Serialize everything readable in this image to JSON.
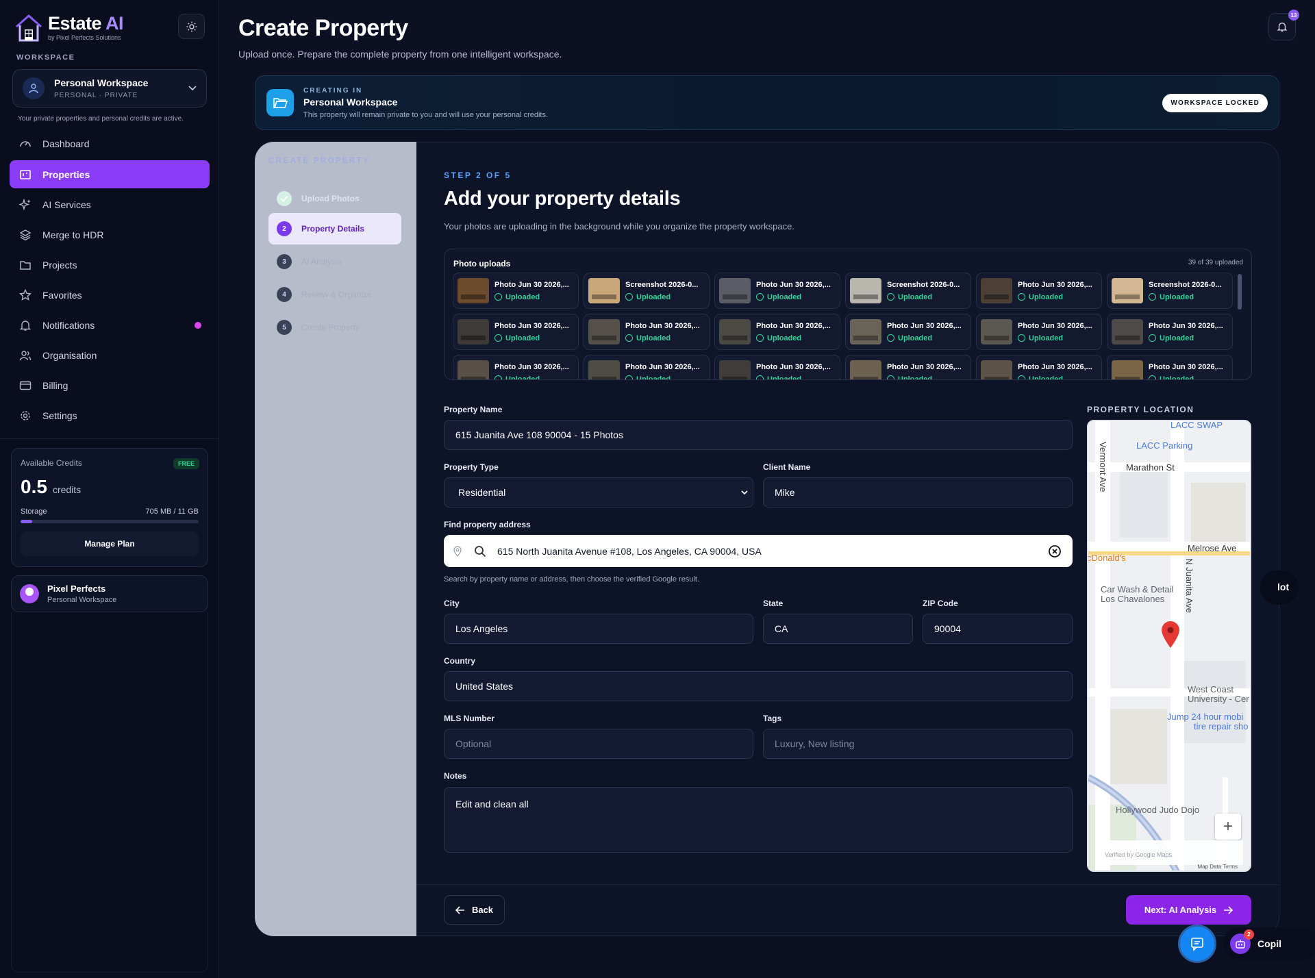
{
  "app": {
    "brand_main": "Estate",
    "brand_accent": "AI",
    "brand_sub": "by Pixel Perfects Solutions"
  },
  "sidebar": {
    "workspace_label": "WORKSPACE",
    "workspace": {
      "name": "Personal Workspace",
      "meta": "PERSONAL · PRIVATE",
      "note": "Your private properties and personal credits are active."
    },
    "items": [
      {
        "label": "Dashboard",
        "icon": "gauge-icon"
      },
      {
        "label": "Properties",
        "icon": "building-icon"
      },
      {
        "label": "AI Services",
        "icon": "sparkles-icon"
      },
      {
        "label": "Merge to HDR",
        "icon": "layers-icon"
      },
      {
        "label": "Projects",
        "icon": "folder-icon"
      },
      {
        "label": "Favorites",
        "icon": "star-icon"
      },
      {
        "label": "Notifications",
        "icon": "bell-icon"
      },
      {
        "label": "Organisation",
        "icon": "users-icon"
      },
      {
        "label": "Billing",
        "icon": "card-icon"
      },
      {
        "label": "Settings",
        "icon": "gear-icon"
      }
    ],
    "credits": {
      "label": "Available Credits",
      "plan_badge": "FREE",
      "value": "0.5",
      "unit": "credits",
      "storage_label": "Storage",
      "storage_value": "705 MB / 11 GB",
      "storage_fraction": 0.064,
      "manage_label": "Manage Plan"
    },
    "user": {
      "name": "Pixel Perfects",
      "workspace": "Personal Workspace"
    }
  },
  "header": {
    "title": "Create Property",
    "subtitle": "Upload once. Prepare the complete property from one intelligent workspace.",
    "notifications_count": "13"
  },
  "banner": {
    "kicker": "CREATING IN",
    "title": "Personal Workspace",
    "desc": "This property will remain private to you and will use your personal credits.",
    "lock_label": "WORKSPACE LOCKED"
  },
  "stepper": {
    "heading": "CREATE PROPERTY",
    "steps": [
      {
        "num": "1",
        "label": "Upload Photos"
      },
      {
        "num": "2",
        "label": "Property Details"
      },
      {
        "num": "3",
        "label": "AI Analysis"
      },
      {
        "num": "4",
        "label": "Review & Organize"
      },
      {
        "num": "5",
        "label": "Create Property"
      }
    ]
  },
  "form": {
    "step_kicker": "STEP 2 OF 5",
    "title": "Add your property details",
    "desc": "Your photos are uploading in the background while you organize the property workspace.",
    "uploads": {
      "title": "Photo uploads",
      "count": "39 of 39 uploaded",
      "status_label": "Uploaded",
      "tiles": [
        {
          "name": "Photo Jun 30 2026,...",
          "tone": "#6b4a2e"
        },
        {
          "name": "Screenshot 2026-0...",
          "tone": "#c9a77a"
        },
        {
          "name": "Photo Jun 30 2026,...",
          "tone": "#5a5d66"
        },
        {
          "name": "Screenshot 2026-0...",
          "tone": "#b9b6ae"
        },
        {
          "name": "Photo Jun 30 2026,...",
          "tone": "#4c3f36"
        },
        {
          "name": "Screenshot 2026-0...",
          "tone": "#d1b892"
        },
        {
          "name": "Photo Jun 30 2026,...",
          "tone": "#3d3a38"
        },
        {
          "name": "Photo Jun 30 2026,...",
          "tone": "#55504a"
        },
        {
          "name": "Photo Jun 30 2026,...",
          "tone": "#4a4944"
        },
        {
          "name": "Photo Jun 30 2026,...",
          "tone": "#6a6358"
        },
        {
          "name": "Photo Jun 30 2026,...",
          "tone": "#5b5751"
        },
        {
          "name": "Photo Jun 30 2026,...",
          "tone": "#4d4a47"
        },
        {
          "name": "Photo Jun 30 2026,...",
          "tone": "#585048"
        },
        {
          "name": "Photo Jun 30 2026,...",
          "tone": "#4f4b45"
        },
        {
          "name": "Photo Jun 30 2026,...",
          "tone": "#3f3c3a"
        },
        {
          "name": "Photo Jun 30 2026,...",
          "tone": "#6d6250"
        },
        {
          "name": "Photo Jun 30 2026,...",
          "tone": "#5d5348"
        },
        {
          "name": "Photo Jun 30 2026,...",
          "tone": "#7a6447"
        }
      ]
    },
    "property_name": {
      "label": "Property Name",
      "value": "615 Juanita Ave 108 90004 - 15 Photos"
    },
    "property_type": {
      "label": "Property Type",
      "value": "Residential"
    },
    "client_name": {
      "label": "Client Name",
      "value": "Mike"
    },
    "address": {
      "label": "Find property address",
      "value": "615 North Juanita Avenue #108, Los Angeles, CA 90004, USA",
      "hint": "Search by property name or address, then choose the verified Google result."
    },
    "city": {
      "label": "City",
      "value": "Los Angeles"
    },
    "state": {
      "label": "State",
      "value": "CA"
    },
    "zip": {
      "label": "ZIP Code",
      "value": "90004"
    },
    "country": {
      "label": "Country",
      "value": "United States"
    },
    "mls": {
      "label": "MLS Number",
      "placeholder": "Optional"
    },
    "tags": {
      "label": "Tags",
      "placeholder": "Luxury, New listing"
    },
    "notes": {
      "label": "Notes",
      "value": "Edit and clean all"
    },
    "back_label": "Back",
    "next_label": "Next: AI Analysis"
  },
  "map": {
    "section_label": "PROPERTY LOCATION",
    "labels": [
      "LACC SWAP",
      "LACC Parking",
      "Marathon St",
      "Vermont Ave",
      "Melrose Ave",
      "N Juanita Ave",
      "cDonald's",
      "Car Wash & Detail",
      "Los Chavalones",
      "West Coast",
      "University - Cer",
      "Jump 24 hour mobi",
      "tire repair sho",
      "Hollywood Judo Dojo"
    ],
    "verified": "Verified by Google Maps",
    "footer": "Map Data  Terms",
    "google": "Google"
  },
  "floating": {
    "side_label": "lot",
    "copilot_label": "Copil",
    "copilot_badge": "2"
  },
  "colors": {
    "accent": "#8b3cf6",
    "success": "#34d399",
    "banner_icon": "#1ea0e8"
  }
}
